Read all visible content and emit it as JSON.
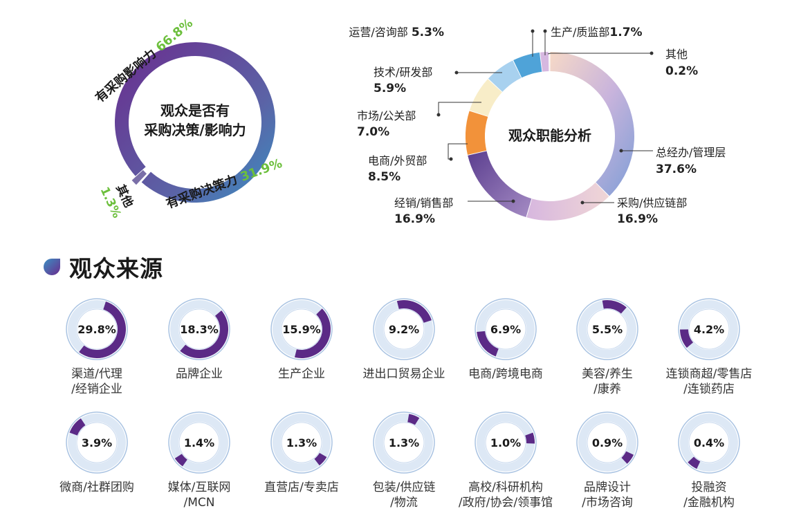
{
  "colors": {
    "purple": "#6a2c8e",
    "blue": "#3a8fc2",
    "green": "#6cbf3c",
    "ring_light": "#dde8f5",
    "ring_border": "#a9c3e2"
  },
  "section": {
    "title": "观众来源",
    "icon": "drop-icon"
  },
  "chart_data": [
    {
      "type": "pie",
      "title": "观众是否有\n采购决策/影响力",
      "title_lines": [
        "观众是否有",
        "采购决策/影响力"
      ],
      "slices": [
        {
          "label": "有采购影响力",
          "value": 66.8,
          "value_text": "66.8%",
          "color": "#6a3594"
        },
        {
          "label": "有采购决策力",
          "value": 31.9,
          "value_text": "31.9%",
          "color": "#3a8fc2"
        },
        {
          "label": "其他",
          "value": 1.3,
          "value_text": "1.3%",
          "color": "#7a6fa8"
        }
      ]
    },
    {
      "type": "pie",
      "title": "观众职能分析",
      "slices": [
        {
          "label": "总经办/管理层",
          "value": 37.6,
          "value_text": "37.6%"
        },
        {
          "label": "采购/供应链部",
          "value": 16.9,
          "value_text": "16.9%"
        },
        {
          "label": "经销/销售部",
          "value": 16.9,
          "value_text": "16.9%"
        },
        {
          "label": "电商/外贸部",
          "value": 8.5,
          "value_text": "8.5%"
        },
        {
          "label": "市场/公关部",
          "value": 7.0,
          "value_text": "7.0%"
        },
        {
          "label": "技术/研发部",
          "value": 5.9,
          "value_text": "5.9%"
        },
        {
          "label": "运营/咨询部",
          "value": 5.3,
          "value_text": "5.3%"
        },
        {
          "label": "生产/质监部",
          "value": 1.7,
          "value_text": "1.7%"
        },
        {
          "label": "其他",
          "value": 0.2,
          "value_text": "0.2%"
        }
      ]
    },
    {
      "type": "pie",
      "title": "观众来源",
      "items": [
        {
          "label": "渠道/代理\n/经销企业",
          "value": 29.8,
          "value_text": "29.8%"
        },
        {
          "label": "品牌企业",
          "value": 18.3,
          "value_text": "18.3%"
        },
        {
          "label": "生产企业",
          "value": 15.9,
          "value_text": "15.9%"
        },
        {
          "label": "进出口贸易企业",
          "value": 9.2,
          "value_text": "9.2%"
        },
        {
          "label": "电商/跨境电商",
          "value": 6.9,
          "value_text": "6.9%"
        },
        {
          "label": "美容/养生\n/康养",
          "value": 5.5,
          "value_text": "5.5%"
        },
        {
          "label": "连锁商超/零售店\n/连锁药店",
          "value": 4.2,
          "value_text": "4.2%"
        },
        {
          "label": "微商/社群团购",
          "value": 3.9,
          "value_text": "3.9%"
        },
        {
          "label": "媒体/互联网\n/MCN",
          "value": 1.4,
          "value_text": "1.4%"
        },
        {
          "label": "直营店/专卖店",
          "value": 1.3,
          "value_text": "1.3%"
        },
        {
          "label": "包装/供应链\n/物流",
          "value": 1.3,
          "value_text": "1.3%"
        },
        {
          "label": "高校/科研机构\n/政府/协会/领事馆",
          "value": 1.0,
          "value_text": "1.0%"
        },
        {
          "label": "品牌设计\n/市场咨询",
          "value": 0.9,
          "value_text": "0.9%"
        },
        {
          "label": "投融资\n/金融机构",
          "value": 0.4,
          "value_text": "0.4%"
        }
      ]
    }
  ]
}
